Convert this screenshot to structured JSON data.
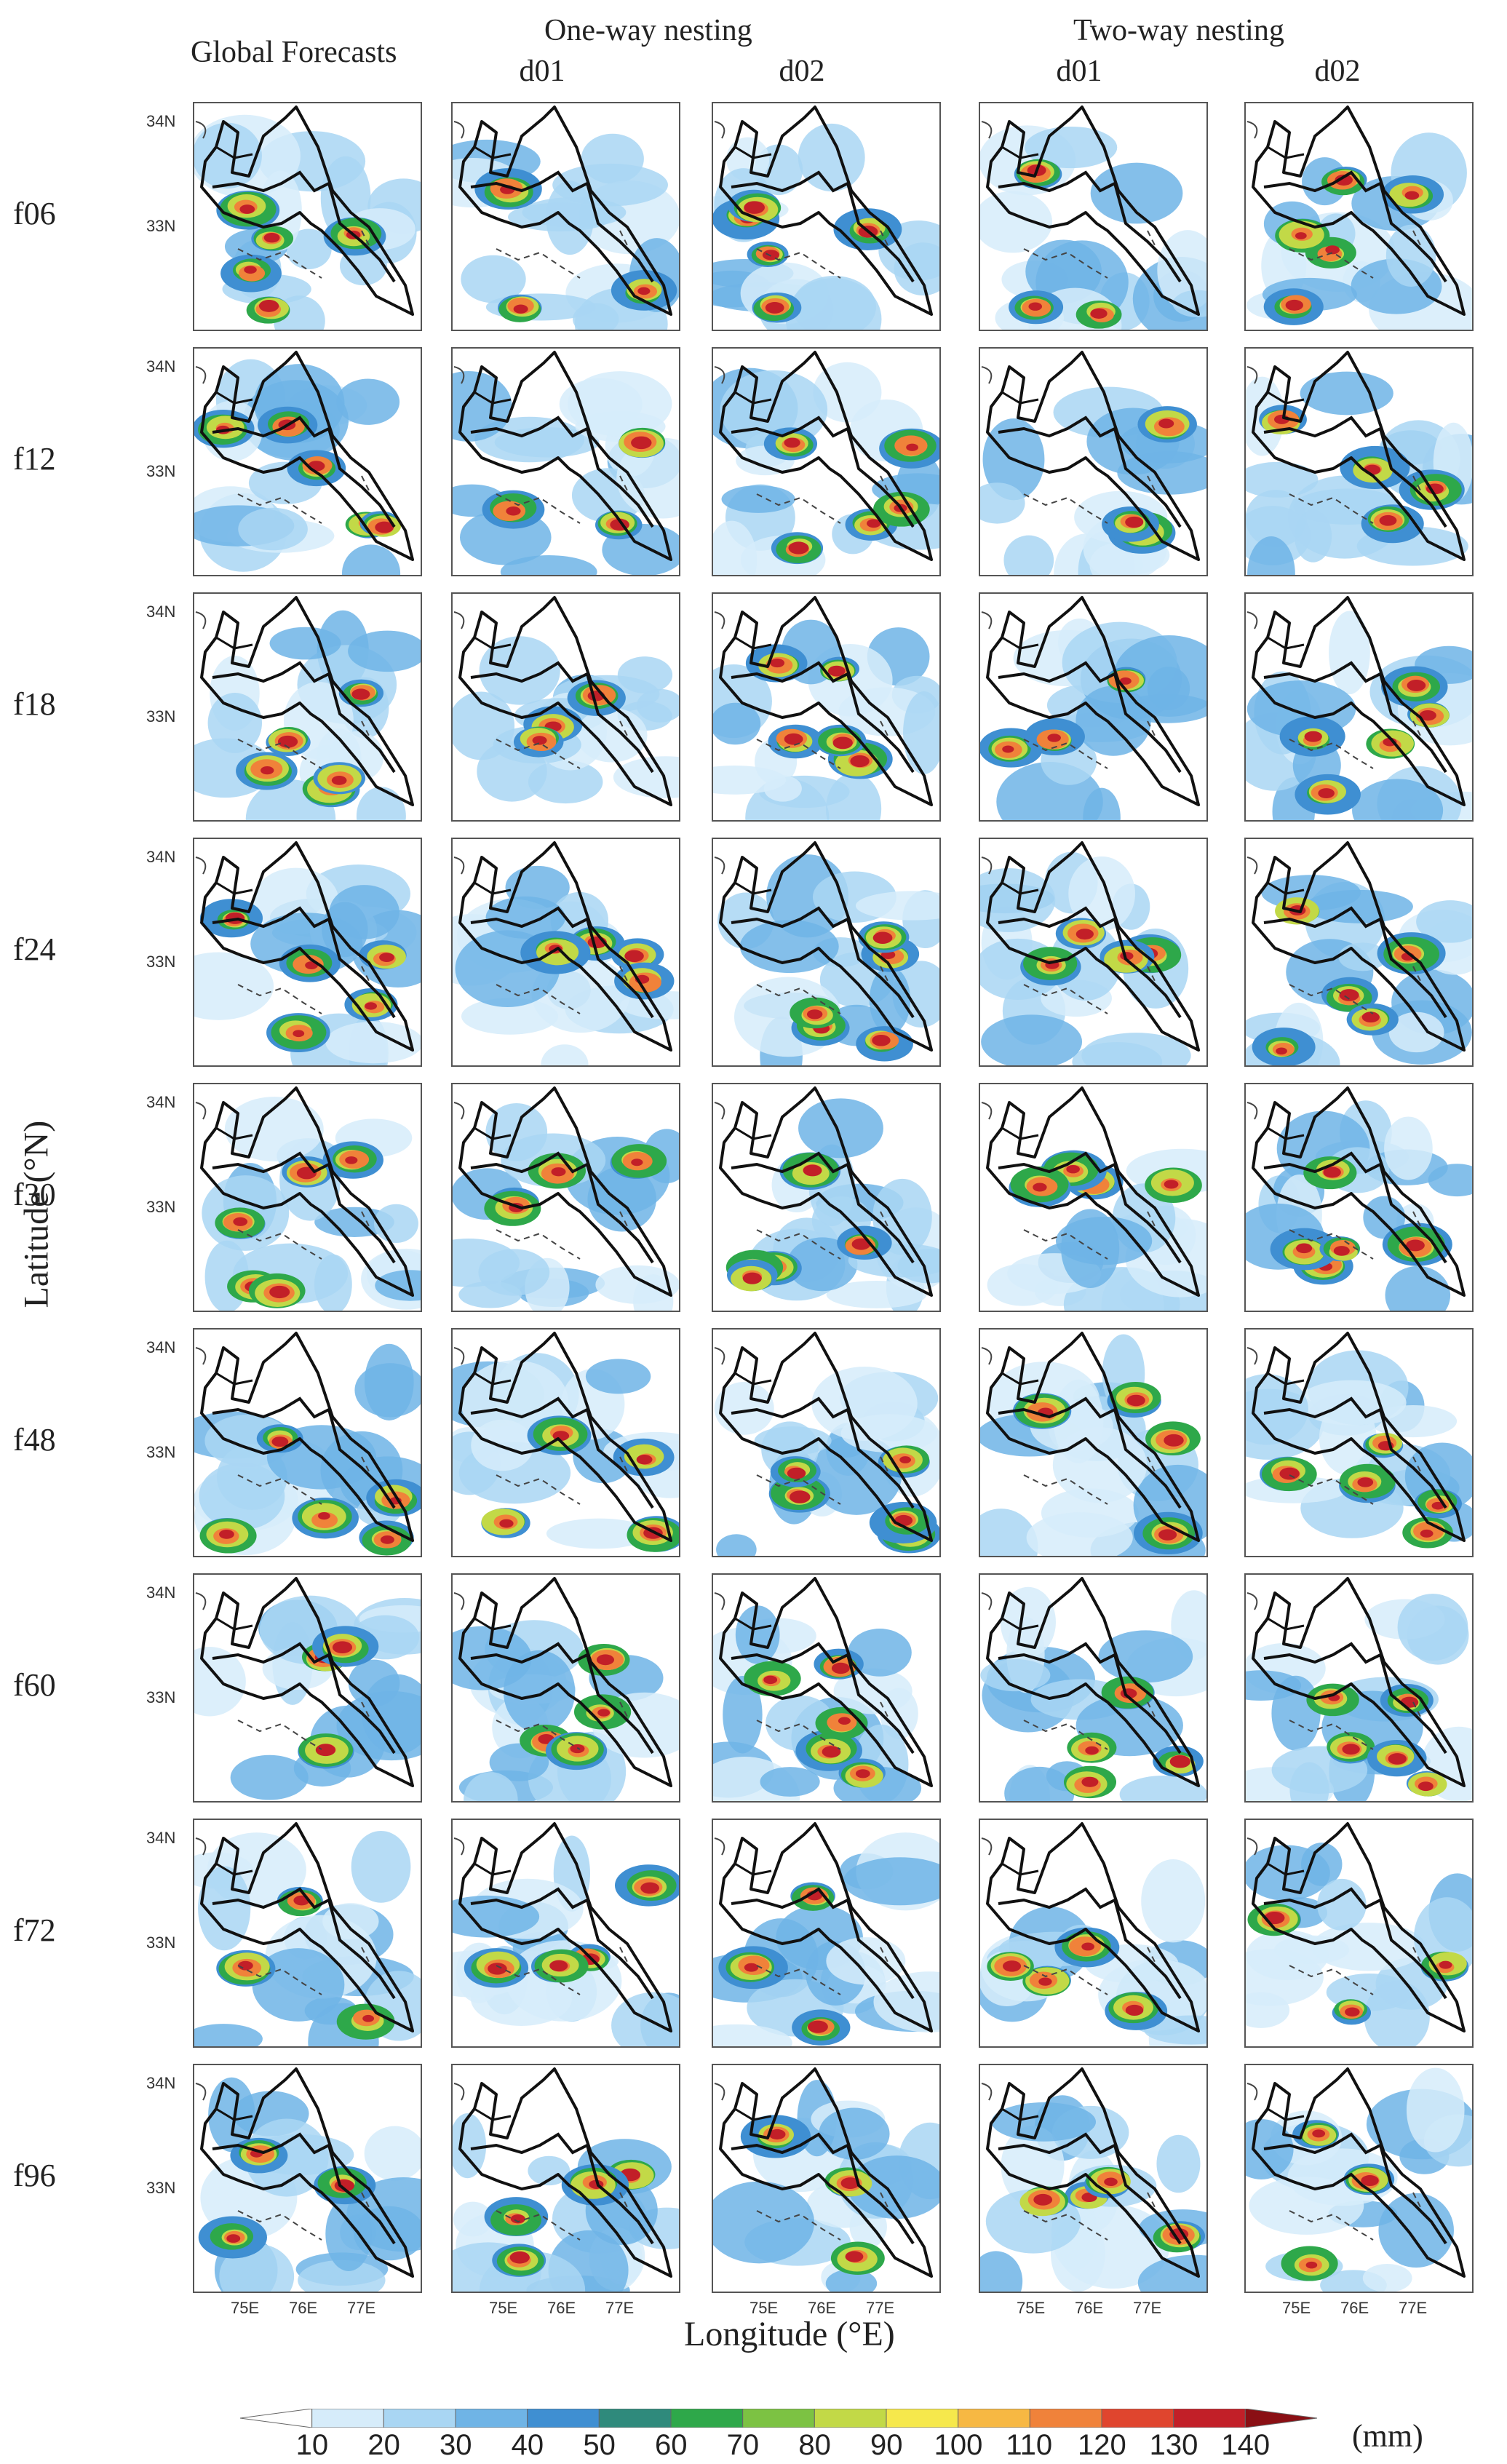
{
  "headers": {
    "global": "Global Forecasts",
    "oneway": "One-way nesting",
    "twoway": "Two-way nesting",
    "d01_a": "d01",
    "d02_a": "d02",
    "d01_b": "d01",
    "d02_b": "d02"
  },
  "rows": [
    "f06",
    "f12",
    "f18",
    "f24",
    "f30",
    "f48",
    "f60",
    "f72",
    "f96"
  ],
  "axes": {
    "y_title": "Latitude (°N)",
    "x_title": "Longitude (°E)",
    "lat_ticks": [
      "34N",
      "33N"
    ],
    "lon_ticks": [
      "75E",
      "76E",
      "77E"
    ]
  },
  "colorbar": {
    "levels": [
      "10",
      "20",
      "30",
      "40",
      "50",
      "60",
      "70",
      "80",
      "90",
      "100",
      "110",
      "120",
      "130",
      "140"
    ],
    "colors": [
      "#ffffff",
      "#d6ecfa",
      "#a9d6f3",
      "#6fb4e6",
      "#3f8fd2",
      "#2f8a7c",
      "#2ea84a",
      "#7cc243",
      "#c2d947",
      "#f6e84c",
      "#f7b843",
      "#f0823a",
      "#e0452e",
      "#c21f28",
      "#8a0f14"
    ],
    "unit": "(mm)"
  }
}
